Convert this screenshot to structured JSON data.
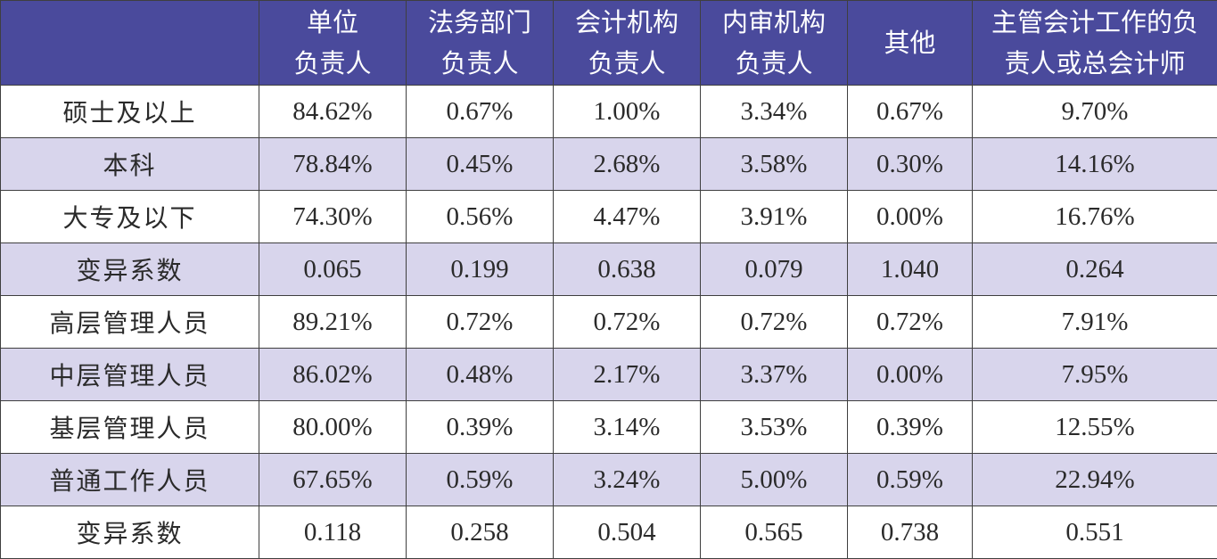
{
  "colors": {
    "header_bg": "#4a4a9c",
    "header_text": "#ffffff",
    "stripe_bg": "#d8d5ec",
    "row_bg": "#ffffff",
    "grid_line": "#3f3f3f"
  },
  "header": [
    {
      "line1": "",
      "line2": ""
    },
    {
      "line1": "单位",
      "line2": "负责人"
    },
    {
      "line1": "法务部门",
      "line2": "负责人"
    },
    {
      "line1": "会计机构",
      "line2": "负责人"
    },
    {
      "line1": "内审机构",
      "line2": "负责人"
    },
    {
      "line1": "其他",
      "line2": ""
    },
    {
      "line1": "主管会计工作的负",
      "line2": "责人或总会计师"
    }
  ],
  "rows": [
    {
      "label": "硕士及以上",
      "cells": [
        "84.62%",
        "0.67%",
        "1.00%",
        "3.34%",
        "0.67%",
        "9.70%"
      ]
    },
    {
      "label": "本科",
      "cells": [
        "78.84%",
        "0.45%",
        "2.68%",
        "3.58%",
        "0.30%",
        "14.16%"
      ]
    },
    {
      "label": "大专及以下",
      "cells": [
        "74.30%",
        "0.56%",
        "4.47%",
        "3.91%",
        "0.00%",
        "16.76%"
      ]
    },
    {
      "label": "变异系数",
      "cells": [
        "0.065",
        "0.199",
        "0.638",
        "0.079",
        "1.040",
        "0.264"
      ]
    },
    {
      "label": "高层管理人员",
      "cells": [
        "89.21%",
        "0.72%",
        "0.72%",
        "0.72%",
        "0.72%",
        "7.91%"
      ]
    },
    {
      "label": "中层管理人员",
      "cells": [
        "86.02%",
        "0.48%",
        "2.17%",
        "3.37%",
        "0.00%",
        "7.95%"
      ]
    },
    {
      "label": "基层管理人员",
      "cells": [
        "80.00%",
        "0.39%",
        "3.14%",
        "3.53%",
        "0.39%",
        "12.55%"
      ]
    },
    {
      "label": "普通工作人员",
      "cells": [
        "67.65%",
        "0.59%",
        "3.24%",
        "5.00%",
        "0.59%",
        "22.94%"
      ]
    },
    {
      "label": "变异系数",
      "cells": [
        "0.118",
        "0.258",
        "0.504",
        "0.565",
        "0.738",
        "0.551"
      ]
    }
  ]
}
